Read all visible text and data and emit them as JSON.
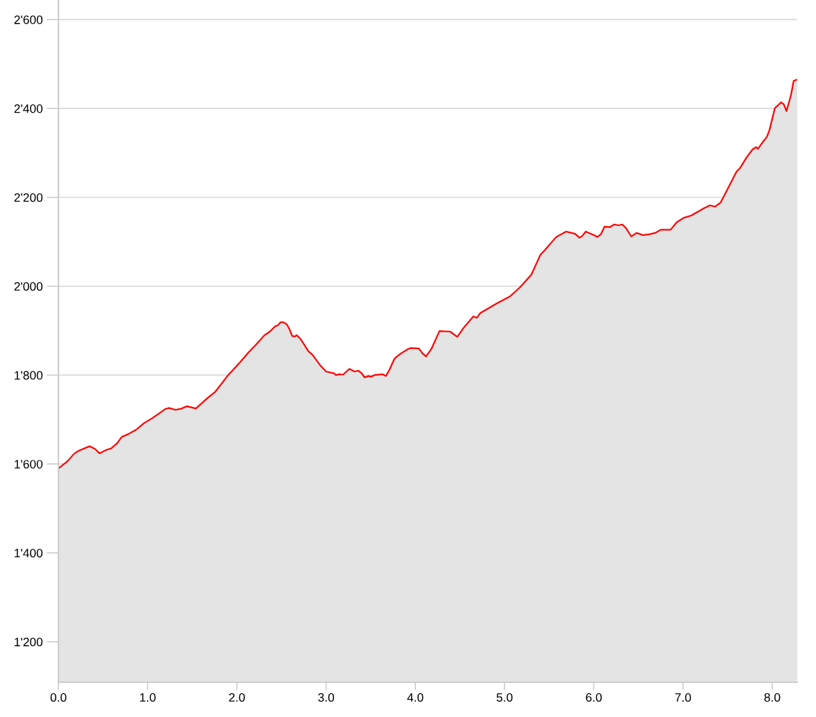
{
  "chart_data": {
    "type": "area",
    "xlim": [
      0,
      8.28
    ],
    "ylim": [
      1109,
      2644
    ],
    "xticks": [
      {
        "value": 0,
        "label": "0.0"
      },
      {
        "value": 1,
        "label": "1.0"
      },
      {
        "value": 2,
        "label": "2.0"
      },
      {
        "value": 3,
        "label": "3.0"
      },
      {
        "value": 4,
        "label": "4.0"
      },
      {
        "value": 5,
        "label": "5.0"
      },
      {
        "value": 6,
        "label": "6.0"
      },
      {
        "value": 7,
        "label": "7.0"
      },
      {
        "value": 8,
        "label": "8.0"
      }
    ],
    "yticks": [
      {
        "value": 1200,
        "label": "1'200"
      },
      {
        "value": 1400,
        "label": "1'400"
      },
      {
        "value": 1600,
        "label": "1'600"
      },
      {
        "value": 1800,
        "label": "1'800"
      },
      {
        "value": 2000,
        "label": "2'000"
      },
      {
        "value": 2200,
        "label": "2'200"
      },
      {
        "value": 2400,
        "label": "2'400"
      },
      {
        "value": 2600,
        "label": "2'600"
      }
    ],
    "grid": "y",
    "series": [
      {
        "color": "#ff0000",
        "x": [
          0.0,
          0.1,
          0.18,
          0.23,
          0.35,
          0.41,
          0.46,
          0.54,
          0.59,
          0.66,
          0.71,
          0.78,
          0.87,
          0.96,
          1.05,
          1.13,
          1.2,
          1.24,
          1.31,
          1.37,
          1.44,
          1.54,
          1.68,
          1.76,
          1.89,
          2.04,
          2.13,
          2.22,
          2.31,
          2.37,
          2.43,
          2.46,
          2.49,
          2.52,
          2.56,
          2.59,
          2.62,
          2.65,
          2.67,
          2.71,
          2.75,
          2.8,
          2.85,
          2.93,
          3.0,
          3.09,
          3.11,
          3.15,
          3.19,
          3.26,
          3.32,
          3.36,
          3.4,
          3.43,
          3.48,
          3.5,
          3.54,
          3.63,
          3.67,
          3.71,
          3.75,
          3.77,
          3.84,
          3.92,
          3.95,
          4.04,
          4.08,
          4.12,
          4.18,
          4.27,
          4.39,
          4.47,
          4.54,
          4.65,
          4.69,
          4.73,
          4.91,
          5.06,
          5.17,
          5.3,
          5.4,
          5.45,
          5.58,
          5.69,
          5.79,
          5.84,
          5.87,
          5.91,
          6.0,
          6.04,
          6.08,
          6.12,
          6.18,
          6.23,
          6.28,
          6.32,
          6.36,
          6.42,
          6.48,
          6.55,
          6.62,
          6.69,
          6.75,
          6.86,
          6.93,
          7.01,
          7.09,
          7.18,
          7.23,
          7.3,
          7.36,
          7.42,
          7.48,
          7.6,
          7.64,
          7.71,
          7.78,
          7.82,
          7.84,
          7.9,
          7.94,
          7.97,
          8.03,
          8.07,
          8.1,
          8.13,
          8.16,
          8.21,
          8.24,
          8.28
        ],
        "values": [
          1590,
          1606,
          1624,
          1630,
          1640,
          1634,
          1624,
          1632,
          1635,
          1647,
          1661,
          1667,
          1677,
          1692,
          1703,
          1714,
          1724,
          1726,
          1722,
          1724,
          1730,
          1725,
          1750,
          1763,
          1797,
          1830,
          1851,
          1870,
          1890,
          1898,
          1910,
          1912,
          1919,
          1919,
          1914,
          1903,
          1888,
          1887,
          1890,
          1882,
          1870,
          1854,
          1845,
          1823,
          1808,
          1804,
          1800,
          1802,
          1801,
          1814,
          1808,
          1810,
          1804,
          1795,
          1798,
          1796,
          1800,
          1802,
          1798,
          1812,
          1830,
          1838,
          1849,
          1859,
          1861,
          1860,
          1849,
          1842,
          1859,
          1899,
          1898,
          1886,
          1906,
          1932,
          1929,
          1940,
          1961,
          1977,
          1997,
          2026,
          2070,
          2081,
          2111,
          2123,
          2118,
          2109,
          2113,
          2123,
          2115,
          2111,
          2117,
          2134,
          2133,
          2139,
          2137,
          2139,
          2131,
          2112,
          2120,
          2115,
          2117,
          2120,
          2127,
          2127,
          2144,
          2154,
          2159,
          2169,
          2175,
          2182,
          2179,
          2188,
          2211,
          2258,
          2266,
          2289,
          2308,
          2313,
          2309,
          2326,
          2336,
          2352,
          2401,
          2408,
          2414,
          2409,
          2394,
          2430,
          2462,
          2465
        ]
      }
    ]
  }
}
